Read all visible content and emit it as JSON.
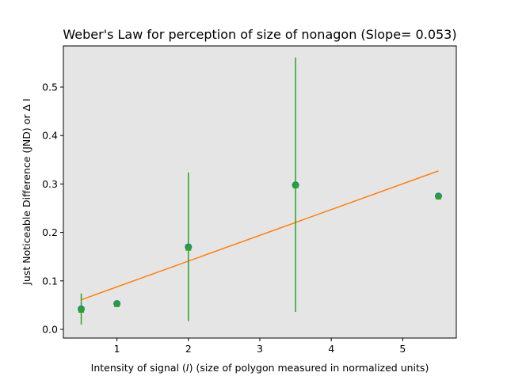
{
  "chart_data": {
    "type": "scatter",
    "title": "Weber's Law for perception of size of nonagon (Slope= 0.053)",
    "xlabel_parts": [
      "Intensity of signal (",
      "I",
      ") (size of polygon measured in normalized units)"
    ],
    "ylabel": "Just Noticeable Difference (JND) or Δ I",
    "xlim": [
      0.25,
      5.75
    ],
    "ylim": [
      -0.018,
      0.585
    ],
    "xticks": [
      1,
      2,
      3,
      4,
      5
    ],
    "yticks": [
      0.0,
      0.1,
      0.2,
      0.3,
      0.4,
      0.5
    ],
    "ytick_labels": [
      "0.0",
      "0.1",
      "0.2",
      "0.3",
      "0.4",
      "0.5"
    ],
    "grid": false,
    "background": "#e5e5e5",
    "series": [
      {
        "marker": "circle",
        "color": "#1f77b4",
        "x": [
          0.5,
          1,
          2,
          3.5,
          5.5
        ],
        "y": [
          0.042,
          0.053,
          0.17,
          0.298,
          0.275
        ]
      },
      {
        "marker": "square",
        "color": "#2ca02c",
        "x": [
          0.5,
          1,
          2,
          3.5,
          5.5
        ],
        "y": [
          0.04,
          0.052,
          0.168,
          0.297,
          0.274
        ],
        "yerr_low": [
          0.01,
          0.052,
          0.017,
          0.036,
          0.274
        ],
        "yerr_high": [
          0.074,
          0.052,
          0.324,
          0.561,
          0.274
        ]
      }
    ],
    "fit_line": {
      "color": "#ff7f0e",
      "x": [
        0.5,
        5.5
      ],
      "y": [
        0.061,
        0.327
      ]
    }
  }
}
